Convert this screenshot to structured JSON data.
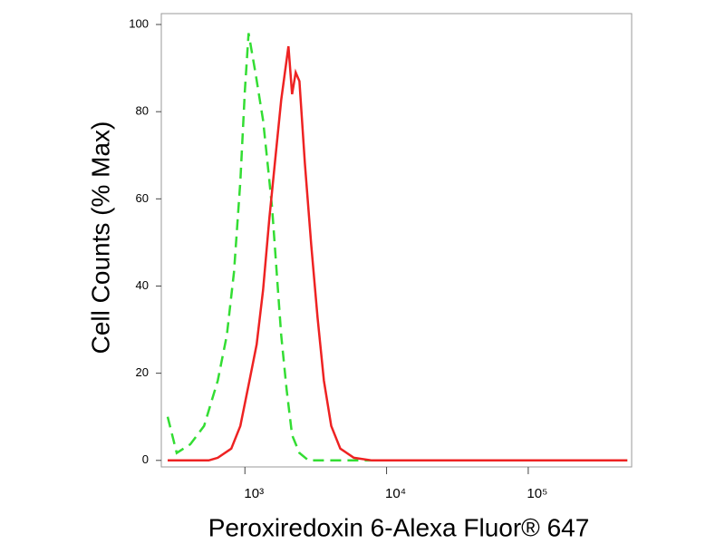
{
  "chart_data": {
    "type": "line",
    "xlabel": "Peroxiredoxin 6-Alexa Fluor® 647",
    "ylabel": "Cell Counts (% Max)",
    "xscale": "log",
    "xlim": [
      257,
      537000
    ],
    "xticks": [
      {
        "value": 1000,
        "label": "10³"
      },
      {
        "value": 10000,
        "label": "10⁴"
      },
      {
        "value": 100000,
        "label": "10⁵"
      }
    ],
    "ylim": [
      -1.5,
      102.5
    ],
    "yticks": [
      0,
      20,
      40,
      60,
      80,
      100
    ],
    "grid": false,
    "series": [
      {
        "color": "#33dd33",
        "style": "dashed",
        "x": [
          285,
          330,
          412,
          515,
          643,
          745,
          837,
          929,
          1000,
          1061,
          1194,
          1343,
          1468,
          1557,
          1675,
          1804,
          1972,
          2153,
          2425,
          2810,
          500000
        ],
        "values": [
          10,
          1.7,
          3.7,
          7.9,
          18.3,
          28.7,
          43.2,
          64,
          84.8,
          98,
          88.4,
          78,
          66.1,
          57.8,
          43.2,
          28.7,
          16.2,
          5.8,
          1.7,
          0,
          0
        ]
      },
      {
        "color": "#ee2222",
        "style": "solid",
        "x": [
          285,
          555,
          643,
          801,
          929,
          1077,
          1211,
          1343,
          1490,
          1628,
          1804,
          2031,
          2153,
          2285,
          2425,
          2648,
          2939,
          3258,
          3613,
          4065,
          4713,
          5877,
          7880,
          500000
        ],
        "values": [
          0,
          0,
          0.6,
          2.7,
          7.9,
          18.3,
          26.6,
          39.1,
          55.7,
          68.2,
          82.7,
          95,
          84,
          89,
          87,
          68.2,
          49.5,
          32.8,
          18.3,
          7.9,
          2.7,
          0.6,
          0,
          0
        ]
      }
    ]
  }
}
